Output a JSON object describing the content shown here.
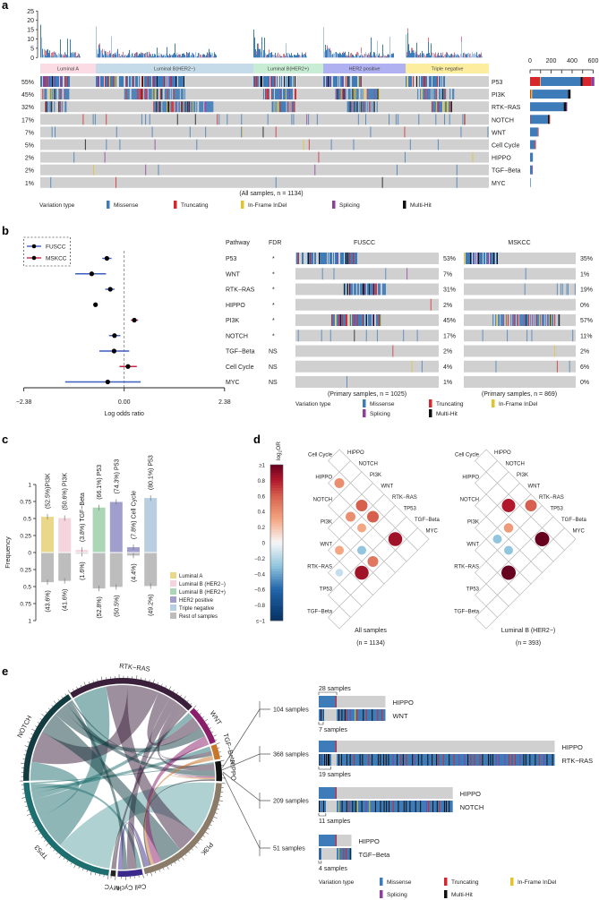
{
  "panel_labels": {
    "a": "a",
    "b": "b",
    "c": "c",
    "d": "d",
    "e": "e"
  },
  "colors": {
    "missense": "#3d7cb8",
    "truncating": "#d7262c",
    "inframe": "#e2c42a",
    "splicing": "#8e3f9c",
    "multihit": "#111111",
    "gray": "#d0d0d0"
  },
  "variation_legend": {
    "title": "Variation type",
    "missense": "Missense",
    "truncating": "Truncating",
    "inframe": "In-Frame InDel",
    "splicing": "Splicing",
    "multihit": "Multi-Hit"
  },
  "chart_data": [
    {
      "panel": "a",
      "type": "oncoprint",
      "histogram_yticks": [
        0,
        5,
        10,
        15,
        20,
        25
      ],
      "histogram_ylim": [
        0,
        25
      ],
      "subtypes": [
        {
          "name": "Luminal A",
          "color": "#fbdbe4"
        },
        {
          "name": "Luminal B(HER2−)",
          "color": "#c6dbe9"
        },
        {
          "name": "Luminal B(HER2+)",
          "color": "#c8ecd4"
        },
        {
          "name": "HER2 positive",
          "color": "#b0b1f1"
        },
        {
          "name": "Triple negative",
          "color": "#fdee9f"
        }
      ],
      "bar_ticks": [
        0,
        200,
        400,
        600
      ],
      "bar_xlim": [
        0,
        600
      ],
      "pathways": [
        {
          "name": "P53",
          "pct": "55%",
          "value": 55,
          "bar": [
            [
              "truncating",
              95
            ],
            [
              "inframe",
              6
            ],
            [
              "missense",
              380
            ],
            [
              "multihit",
              20
            ],
            [
              "truncating",
              80
            ],
            [
              "splicing",
              30
            ]
          ]
        },
        {
          "name": "PI3K",
          "pct": "45%",
          "value": 45,
          "bar": [
            [
              "truncating",
              8
            ],
            [
              "inframe",
              12
            ],
            [
              "missense",
              340
            ],
            [
              "multihit",
              25
            ]
          ]
        },
        {
          "name": "RTK−RAS",
          "pct": "32%",
          "value": 32,
          "bar": [
            [
              "missense",
              320
            ],
            [
              "multihit",
              25
            ],
            [
              "splicing",
              8
            ]
          ]
        },
        {
          "name": "NOTCH",
          "pct": "17%",
          "value": 17,
          "bar": [
            [
              "truncating",
              4
            ],
            [
              "missense",
              165
            ],
            [
              "multihit",
              15
            ],
            [
              "truncating",
              6
            ]
          ]
        },
        {
          "name": "WNT",
          "pct": "7%",
          "value": 7,
          "bar": [
            [
              "missense",
              75
            ],
            [
              "truncating",
              6
            ]
          ]
        },
        {
          "name": "Cell Cycle",
          "pct": "5%",
          "value": 5,
          "bar": [
            [
              "missense",
              45
            ],
            [
              "truncating",
              10
            ]
          ]
        },
        {
          "name": "HIPPO",
          "pct": "2%",
          "value": 2,
          "bar": [
            [
              "missense",
              27
            ]
          ]
        },
        {
          "name": "TGF−Beta",
          "pct": "2%",
          "value": 2,
          "bar": [
            [
              "missense",
              20
            ],
            [
              "splicing",
              6
            ]
          ]
        },
        {
          "name": "MYC",
          "pct": "1%",
          "value": 1,
          "bar": [
            [
              "missense",
              6
            ]
          ]
        }
      ],
      "caption": "(All samples, n = 1134)"
    },
    {
      "panel": "b",
      "type": "forest",
      "xlabel": "Log odds ratio",
      "xtick_values": [
        -2.38,
        0,
        2.38
      ],
      "xtick_labels": [
        "−2.38",
        "0.00",
        "2.38"
      ],
      "xlim": [
        -2.38,
        2.38
      ],
      "legend": [
        {
          "name": "FUSCC",
          "color": "#3a5fbf"
        },
        {
          "name": "MSKCC",
          "color": "#c8234a"
        }
      ],
      "headers": {
        "pathway": "Pathway",
        "fdr": "FDR"
      },
      "cohorts": [
        {
          "name": "FUSCC",
          "caption": "(Primary samples, n = 1025)"
        },
        {
          "name": "MSKCC",
          "caption": "(Primary samples, n = 869)"
        }
      ],
      "rows": [
        {
          "pathway": "P53",
          "fdr": "*",
          "log_or": -0.41,
          "ci": [
            -0.52,
            -0.3
          ],
          "favors": "FUSCC",
          "fuscc": "53%",
          "fuscc_value": 53,
          "mskcc": "35%",
          "mskcc_value": 35
        },
        {
          "pathway": "WNT",
          "fdr": "*",
          "log_or": -0.77,
          "ci": [
            -1.16,
            -0.43
          ],
          "favors": "FUSCC",
          "fuscc": "7%",
          "fuscc_value": 7,
          "mskcc": "1%",
          "mskcc_value": 1
        },
        {
          "pathway": "RTK−RAS",
          "fdr": "*",
          "log_or": -0.33,
          "ci": [
            -0.45,
            -0.23
          ],
          "favors": "FUSCC",
          "fuscc": "31%",
          "fuscc_value": 31,
          "mskcc": "19%",
          "mskcc_value": 19
        },
        {
          "pathway": "HIPPO",
          "fdr": "*",
          "log_or": -0.68,
          "ci": [
            -0.68,
            -0.68
          ],
          "favors": "",
          "fuscc": "2%",
          "fuscc_value": 2,
          "mskcc": "0%",
          "mskcc_value": 0
        },
        {
          "pathway": "PI3K",
          "fdr": "*",
          "log_or": 0.24,
          "ci": [
            0.16,
            0.33
          ],
          "favors": "MSKCC",
          "fuscc": "45%",
          "fuscc_value": 45,
          "mskcc": "57%",
          "mskcc_value": 57
        },
        {
          "pathway": "NOTCH",
          "fdr": "*",
          "log_or": -0.23,
          "ci": [
            -0.36,
            -0.09
          ],
          "favors": "FUSCC",
          "fuscc": "17%",
          "fuscc_value": 17,
          "mskcc": "11%",
          "mskcc_value": 11
        },
        {
          "pathway": "TGF−Beta",
          "fdr": "NS",
          "log_or": -0.24,
          "ci": [
            -0.59,
            0.12
          ],
          "favors": "FUSCC",
          "fuscc": "2%",
          "fuscc_value": 2,
          "mskcc": "2%",
          "mskcc_value": 2
        },
        {
          "pathway": "Cell Cycle",
          "fdr": "NS",
          "log_or": 0.09,
          "ci": [
            -0.11,
            0.3
          ],
          "favors": "MSKCC",
          "fuscc": "4%",
          "fuscc_value": 4,
          "mskcc": "6%",
          "mskcc_value": 6
        },
        {
          "pathway": "MYC",
          "fdr": "NS",
          "log_or": -0.39,
          "ci": [
            -1.4,
            0.39
          ],
          "favors": "FUSCC",
          "fuscc": "1%",
          "fuscc_value": 1,
          "mskcc": "0%",
          "mskcc_value": 0
        }
      ]
    },
    {
      "panel": "c",
      "type": "bar",
      "ylabel": "Frequency",
      "ytick_labels": [
        "1",
        "0.75",
        "0.5",
        "0.25",
        "0",
        "0.25",
        "0.5",
        "0.75",
        "1"
      ],
      "ylim": [
        -1,
        1
      ],
      "bars": [
        {
          "subtype": "Luminal A",
          "pathway": "PI3K",
          "up": 0.525,
          "up_label": "(52.5%)PI3K",
          "down": 0.436,
          "down_label": "(43.6%)",
          "color": "#e9d78a"
        },
        {
          "subtype": "Luminal B (HER2−)",
          "pathway": "PI3K",
          "up": 0.506,
          "up_label": "(50.6%) PI3K",
          "down": 0.416,
          "down_label": "(41.6%)",
          "color": "#f6d4dd"
        },
        {
          "subtype": "Luminal B (HER2−)",
          "pathway": "TGF−Beta",
          "up": 0.038,
          "up_label": "(3.8%) TGF−Beta",
          "down": 0.016,
          "down_label": "(1.6%)",
          "color": "#f6d4dd"
        },
        {
          "subtype": "Luminal B (HER2+)",
          "pathway": "P53",
          "up": 0.661,
          "up_label": "(66.1%) P53",
          "down": 0.528,
          "down_label": "(52.8%)",
          "color": "#abd7b7"
        },
        {
          "subtype": "HER2 positive",
          "pathway": "P53",
          "up": 0.743,
          "up_label": "(74.3%) P53",
          "down": 0.505,
          "down_label": "(50.5%)",
          "color": "#a09ecd"
        },
        {
          "subtype": "HER2 positive",
          "pathway": "Cell Cycle",
          "up": 0.078,
          "up_label": "(7.8%) Cell Cycle",
          "down": 0.044,
          "down_label": "(4.4%)",
          "color": "#a09ecd"
        },
        {
          "subtype": "Triple negative",
          "pathway": "P53",
          "up": 0.801,
          "up_label": "(80.1%) P53",
          "down": 0.492,
          "down_label": "(49.2%)",
          "color": "#b8cee1"
        }
      ],
      "legend": [
        {
          "name": "Luminal A",
          "color": "#e9d78a"
        },
        {
          "name": "Luminal B (HER2−)",
          "color": "#f6d4dd"
        },
        {
          "name": "Luminal B (HER2+)",
          "color": "#abd7b7"
        },
        {
          "name": "HER2 positive",
          "color": "#a09ecd"
        },
        {
          "name": "Triple negative",
          "color": "#b8cee1"
        },
        {
          "name": "Rest of samples",
          "color": "#bdbdbd"
        }
      ]
    },
    {
      "panel": "d",
      "type": "heatmap",
      "colorbar_title": {
        "base": "log",
        "sub": "2",
        "rest": "OR"
      },
      "colorbar_range": [
        -1,
        1
      ],
      "colorbar_ticks": [
        "≥1",
        "0.8",
        "0.6",
        "0.4",
        "0.2",
        "0",
        "−0.2",
        "−0.4",
        "−0.6",
        "−0.8",
        "≤−1"
      ],
      "row_labels": [
        "Cell Cycle",
        "HIPPO",
        "NOTCH",
        "PI3K",
        "WNT",
        "RTK−RAS",
        "TP53",
        "TGF−Beta"
      ],
      "col_labels": [
        "HIPPO",
        "NOTCH",
        "PI3K",
        "WNT",
        "RTK−RAS",
        "TP53",
        "TGF−Beta",
        "MYC"
      ],
      "grids": [
        {
          "caption": "All samples",
          "n": "(n = 1134)",
          "cells": [
            {
              "row": 1,
              "col": 1,
              "log2or": 0.4
            },
            {
              "row": 1,
              "col": 3,
              "log2or": 0.6
            },
            {
              "row": 2,
              "col": 3,
              "log2or": 0.4
            },
            {
              "row": 1,
              "col": 4,
              "log2or": 0.6
            },
            {
              "row": 2,
              "col": 4,
              "log2or": 0.3
            },
            {
              "row": 1,
              "col": 6,
              "log2or": 0.85
            },
            {
              "row": 4,
              "col": 4,
              "log2or": 0.3
            },
            {
              "row": 3,
              "col": 5,
              "log2or": -0.3
            },
            {
              "row": 3,
              "col": 6,
              "log2or": 0.5
            },
            {
              "row": 5,
              "col": 5,
              "log2or": -0.15
            },
            {
              "row": 4,
              "col": 6,
              "log2or": 0.85
            }
          ]
        },
        {
          "caption": "Luminal B (HER2−)",
          "n": "(n = 393)",
          "cells": [
            {
              "row": 1,
              "col": 3,
              "log2or": 0.8
            },
            {
              "row": 0,
              "col": 4,
              "log2or": 0.6
            },
            {
              "row": 2,
              "col": 4,
              "log2or": 0.35
            },
            {
              "row": 3,
              "col": 4,
              "log2or": -0.3
            },
            {
              "row": 1,
              "col": 6,
              "log2or": 1.0
            },
            {
              "row": 3,
              "col": 5,
              "log2or": -0.3
            },
            {
              "row": 4,
              "col": 6,
              "log2or": 1.0
            }
          ]
        }
      ]
    },
    {
      "panel": "e",
      "type": "chord",
      "sectors": [
        {
          "name": "RTK−RAS",
          "color": "#3b203b"
        },
        {
          "name": "WNT",
          "color": "#8a1e6a"
        },
        {
          "name": "TGF−Beta",
          "color": "#c8762c"
        },
        {
          "name": "HIPPO",
          "color": "#111111"
        },
        {
          "name": "PI3K",
          "color": "#8a7c68"
        },
        {
          "name": "Cell Cycle",
          "color": "#3b2a8c"
        },
        {
          "name": "MYC",
          "color": "#222222"
        },
        {
          "name": "TP53",
          "color": "#1d6e6e"
        },
        {
          "name": "NOTCH",
          "color": "#123c40"
        }
      ],
      "links": [
        [
          "TP53",
          "PI3K",
          35
        ],
        [
          "TP53",
          "RTK−RAS",
          22
        ],
        [
          "TP53",
          "NOTCH",
          12
        ],
        [
          "TP53",
          "WNT",
          4
        ],
        [
          "TP53",
          "TGF−Beta",
          3
        ],
        [
          "TP53",
          "Cell Cycle",
          3
        ],
        [
          "TP53",
          "HIPPO",
          1
        ],
        [
          "RTK−RAS",
          "PI3K",
          14
        ],
        [
          "RTK−RAS",
          "NOTCH",
          20
        ],
        [
          "RTK−RAS",
          "WNT",
          8
        ],
        [
          "RTK−RAS",
          "Cell Cycle",
          6
        ],
        [
          "RTK−RAS",
          "HIPPO",
          4
        ],
        [
          "RTK−RAS",
          "TGF−Beta",
          2
        ],
        [
          "RTK−RAS",
          "MYC",
          2
        ],
        [
          "NOTCH",
          "PI3K",
          14
        ],
        [
          "NOTCH",
          "WNT",
          6
        ],
        [
          "NOTCH",
          "HIPPO",
          4
        ],
        [
          "NOTCH",
          "Cell Cycle",
          3
        ],
        [
          "NOTCH",
          "TGF−Beta",
          1
        ],
        [
          "WNT",
          "PI3K",
          5
        ],
        [
          "WNT",
          "HIPPO",
          1
        ],
        [
          "TGF−Beta",
          "PI3K",
          2
        ],
        [
          "TGF−Beta",
          "HIPPO",
          1
        ],
        [
          "HIPPO",
          "PI3K",
          1
        ],
        [
          "Cell Cycle",
          "PI3K",
          3
        ],
        [
          "MYC",
          "PI3K",
          1
        ]
      ],
      "cooccurrence": [
        {
          "label": "104 samples",
          "total": 104,
          "hippo": 28,
          "overlap": 7,
          "hippo_name": "HIPPO",
          "partner": "WNT",
          "hippo_count_label": "28 samples",
          "overlap_label": "7 samples"
        },
        {
          "label": "368 samples",
          "total": 368,
          "hippo": 28,
          "overlap": 19,
          "hippo_name": "HIPPO",
          "partner": "RTK−RAS",
          "overlap_label": "19 samples"
        },
        {
          "label": "209 samples",
          "total": 209,
          "hippo": 28,
          "overlap": 11,
          "hippo_name": "HIPPO",
          "partner": "NOTCH",
          "overlap_label": "11 samples"
        },
        {
          "label": "51 samples",
          "total": 51,
          "hippo": 28,
          "overlap": 4,
          "hippo_name": "HIPPO",
          "partner": "TGF−Beta",
          "overlap_label": "4 samples"
        }
      ]
    }
  ]
}
